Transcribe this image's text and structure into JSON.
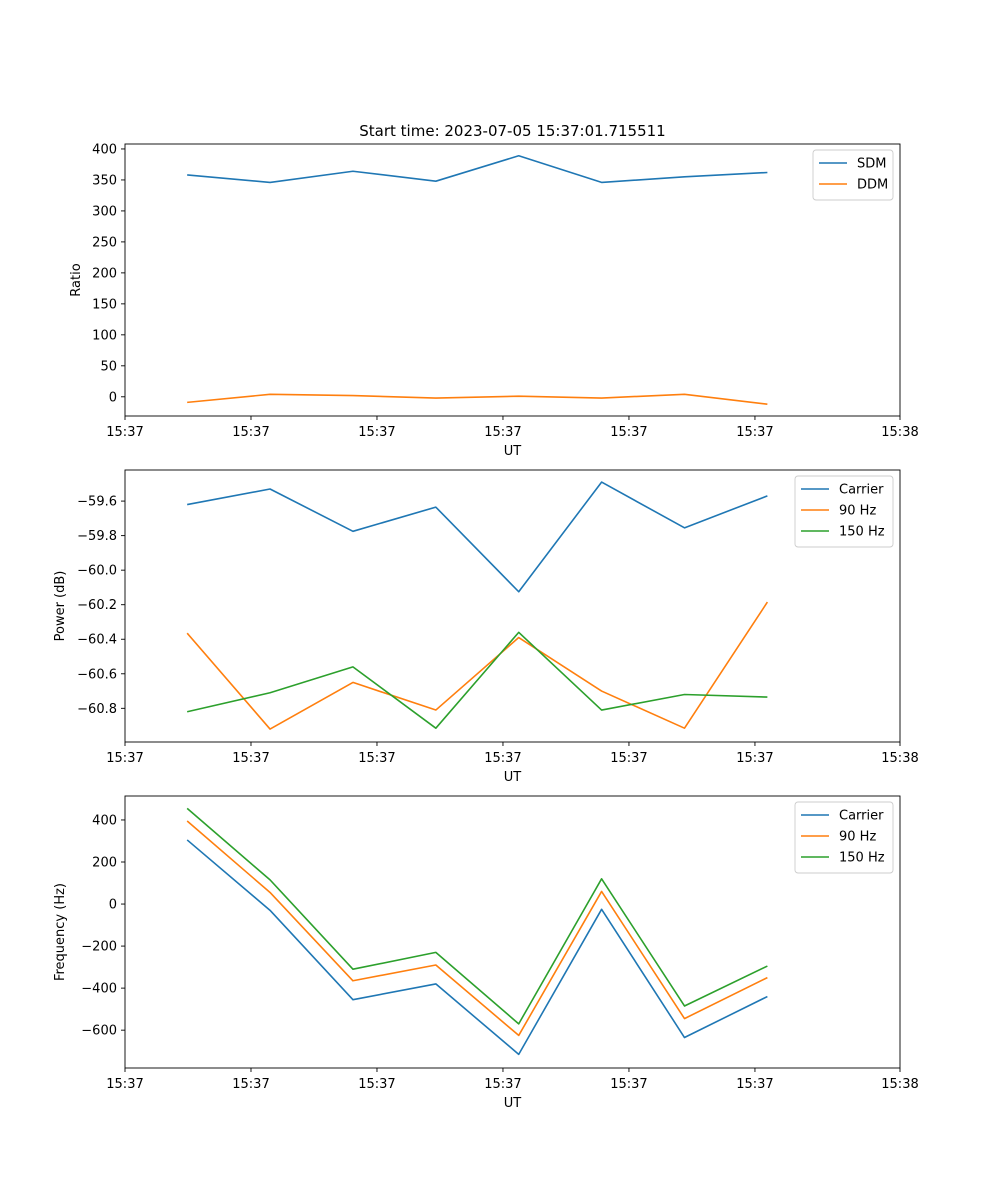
{
  "chart_data": [
    {
      "type": "line",
      "title": "Start time: 2023-07-05 15:37:01.715511",
      "xlabel": "UT",
      "ylabel": "Ratio",
      "x": [
        0,
        1,
        2,
        3,
        4,
        5,
        6,
        7
      ],
      "xlim": [
        -0.75,
        8.6
      ],
      "x_ticks": [
        -0.75,
        0.77,
        2.29,
        3.81,
        5.33,
        6.85,
        8.6
      ],
      "x_tick_labels": [
        "15:37",
        "15:37",
        "15:37",
        "15:37",
        "15:37",
        "15:37",
        "15:38"
      ],
      "ylim": [
        -31,
        408
      ],
      "y_ticks": [
        0,
        50,
        100,
        150,
        200,
        250,
        300,
        350,
        400
      ],
      "y_tick_labels": [
        "0",
        "50",
        "100",
        "150",
        "200",
        "250",
        "300",
        "350",
        "400"
      ],
      "legend_position": "top-right",
      "series": [
        {
          "name": "SDM",
          "color": "#1f77b4",
          "values": [
            358,
            346,
            364,
            348,
            389,
            346,
            355,
            362
          ]
        },
        {
          "name": "DDM",
          "color": "#ff7f0e",
          "values": [
            -9,
            4,
            2,
            -2,
            1,
            -2,
            4,
            -12
          ]
        }
      ]
    },
    {
      "type": "line",
      "title": "",
      "xlabel": "UT",
      "ylabel": "Power (dB)",
      "x": [
        0,
        1,
        2,
        3,
        4,
        5,
        6,
        7
      ],
      "xlim": [
        -0.75,
        8.6
      ],
      "x_ticks": [
        -0.75,
        0.77,
        2.29,
        3.81,
        5.33,
        6.85,
        8.6
      ],
      "x_tick_labels": [
        "15:37",
        "15:37",
        "15:37",
        "15:37",
        "15:37",
        "15:37",
        "15:38"
      ],
      "ylim": [
        -60.995,
        -59.42
      ],
      "y_ticks": [
        -60.8,
        -60.6,
        -60.4,
        -60.2,
        -60.0,
        -59.8,
        -59.6
      ],
      "y_tick_labels": [
        "−60.8",
        "−60.6",
        "−60.4",
        "−60.2",
        "−60.0",
        "−59.8",
        "−59.6"
      ],
      "legend_position": "top-right",
      "series": [
        {
          "name": "Carrier",
          "color": "#1f77b4",
          "values": [
            -59.62,
            -59.53,
            -59.775,
            -59.635,
            -60.125,
            -59.49,
            -59.755,
            -59.57
          ]
        },
        {
          "name": "90 Hz",
          "color": "#ff7f0e",
          "values": [
            -60.365,
            -60.92,
            -60.65,
            -60.81,
            -60.39,
            -60.7,
            -60.915,
            -60.185
          ]
        },
        {
          "name": "150 Hz",
          "color": "#2ca02c",
          "values": [
            -60.82,
            -60.71,
            -60.56,
            -60.915,
            -60.36,
            -60.81,
            -60.72,
            -60.735
          ]
        }
      ]
    },
    {
      "type": "line",
      "title": "",
      "xlabel": "UT",
      "ylabel": "Frequency (Hz)",
      "x": [
        0,
        1,
        2,
        3,
        4,
        5,
        6,
        7
      ],
      "xlim": [
        -0.75,
        8.6
      ],
      "x_ticks": [
        -0.75,
        0.77,
        2.29,
        3.81,
        5.33,
        6.85,
        8.6
      ],
      "x_tick_labels": [
        "15:37",
        "15:37",
        "15:37",
        "15:37",
        "15:37",
        "15:37",
        "15:38"
      ],
      "ylim": [
        -780,
        514
      ],
      "y_ticks": [
        -600,
        -400,
        -200,
        0,
        200,
        400
      ],
      "y_tick_labels": [
        "−600",
        "−400",
        "−200",
        "0",
        "200",
        "400"
      ],
      "legend_position": "top-right",
      "series": [
        {
          "name": "Carrier",
          "color": "#1f77b4",
          "values": [
            305,
            -30,
            -455,
            -380,
            -715,
            -25,
            -635,
            -440
          ]
        },
        {
          "name": "90 Hz",
          "color": "#ff7f0e",
          "values": [
            395,
            55,
            -365,
            -290,
            -625,
            60,
            -545,
            -350
          ]
        },
        {
          "name": "150 Hz",
          "color": "#2ca02c",
          "values": [
            455,
            115,
            -310,
            -230,
            -570,
            120,
            -485,
            -295
          ]
        }
      ]
    }
  ]
}
